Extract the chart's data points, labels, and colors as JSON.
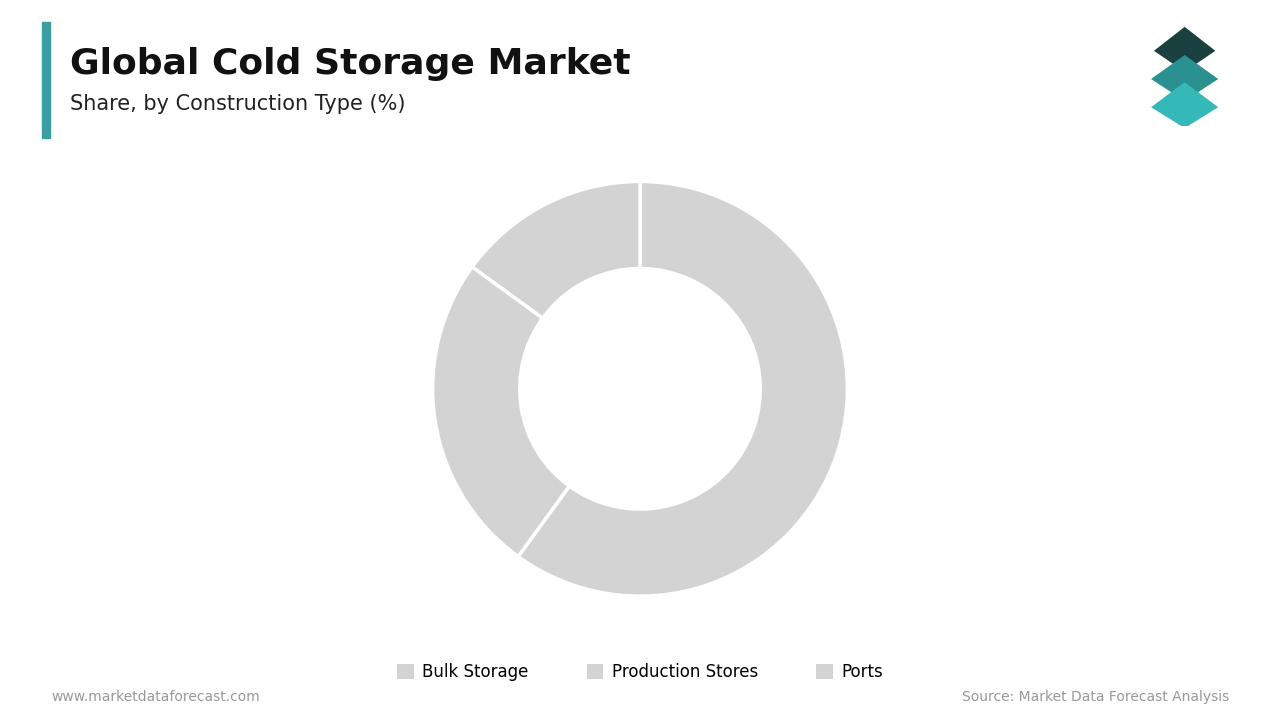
{
  "title": "Global Cold Storage Market",
  "subtitle": "Share, by Construction Type (%)",
  "segments": [
    "Bulk Storage",
    "Production Stores",
    "Ports"
  ],
  "values": [
    60,
    25,
    15
  ],
  "wedge_color": "#d3d3d3",
  "wedge_edge_color": "#ffffff",
  "wedge_linewidth": 2.5,
  "background_color": "#ffffff",
  "title_fontsize": 26,
  "subtitle_fontsize": 15,
  "title_color": "#111111",
  "subtitle_color": "#222222",
  "legend_fontsize": 12,
  "legend_color": "#d3d3d3",
  "footer_left": "www.marketdataforecast.com",
  "footer_right": "Source: Market Data Forecast Analysis",
  "footer_fontsize": 10,
  "footer_color": "#999999",
  "accent_bar_color": "#3a9ea0",
  "donut_width": 0.42,
  "start_angle": 90,
  "icon_top_color": "#1a4040",
  "icon_mid_color": "#2a9090",
  "icon_bot_color": "#35b8b8"
}
